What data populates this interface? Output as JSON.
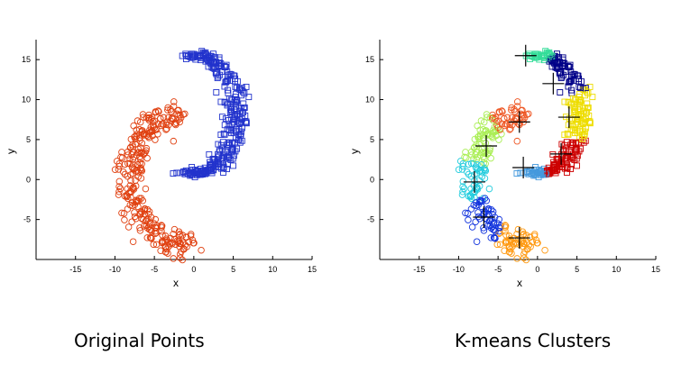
{
  "captions": {
    "left": "Original Points",
    "right": "K-means Clusters"
  },
  "chart_data": [
    {
      "type": "scatter",
      "title": "",
      "xlabel": "x",
      "ylabel": "y",
      "xlim": [
        -20,
        15
      ],
      "ylim": [
        -10,
        17.5
      ],
      "xticks": [
        -15,
        -10,
        -5,
        0,
        5,
        10,
        15
      ],
      "yticks": [
        -5,
        0,
        5,
        10,
        15
      ],
      "grid": false,
      "series": [
        {
          "marker": "square",
          "color": "#2233cc",
          "spiral": "upper",
          "points": []
        },
        {
          "marker": "circle",
          "color": "#e04010",
          "spiral": "lower",
          "points": []
        }
      ]
    },
    {
      "type": "scatter",
      "title": "",
      "xlabel": "x",
      "ylabel": "y",
      "xlim": [
        -20,
        15
      ],
      "ylim": [
        -10,
        17.5
      ],
      "xticks": [
        -15,
        -10,
        -5,
        0,
        5,
        10,
        15
      ],
      "yticks": [
        -5,
        0,
        5,
        10,
        15
      ],
      "grid": false,
      "centroids": [
        {
          "x": -1.5,
          "y": 15.5,
          "color": "#33dd99"
        },
        {
          "x": 2.0,
          "y": 12.0,
          "color": "#000088"
        },
        {
          "x": 4.0,
          "y": 7.8,
          "color": "#eedd00"
        },
        {
          "x": -2.3,
          "y": 7.2,
          "color": "#ee5522"
        },
        {
          "x": 3.0,
          "y": 3.2,
          "color": "#cc0000"
        },
        {
          "x": -6.5,
          "y": 4.2,
          "color": "#aaee55"
        },
        {
          "x": -1.8,
          "y": 1.5,
          "color": "#4499dd"
        },
        {
          "x": -8.0,
          "y": -0.3,
          "color": "#22ccdd"
        },
        {
          "x": -6.8,
          "y": -4.7,
          "color": "#1133dd"
        },
        {
          "x": -2.3,
          "y": -7.3,
          "color": "#ff9911"
        }
      ]
    }
  ]
}
